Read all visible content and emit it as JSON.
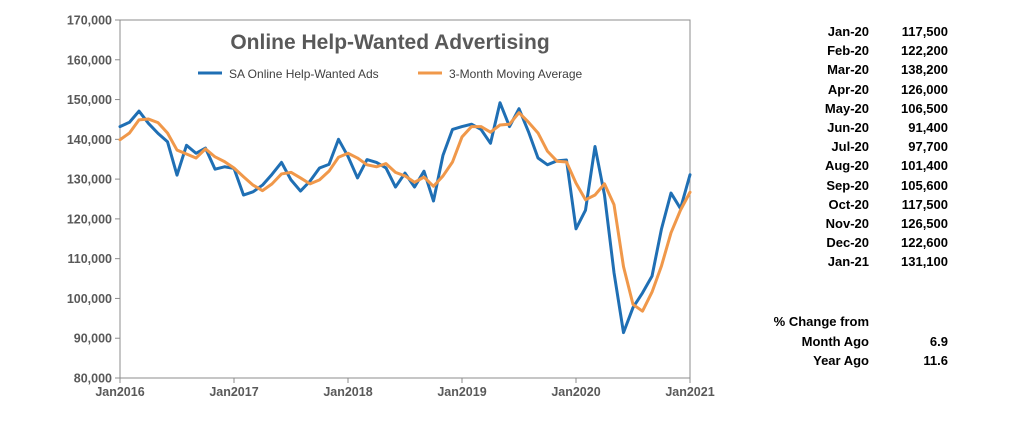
{
  "chart_data": {
    "type": "line",
    "title": "Online Help-Wanted Advertising",
    "xlabel": "",
    "ylabel": "",
    "ylim": [
      80000,
      170000
    ],
    "y_ticks": [
      80000,
      90000,
      100000,
      110000,
      120000,
      130000,
      140000,
      150000,
      160000,
      170000
    ],
    "y_tick_labels": [
      "80,000",
      "90,000",
      "100,000",
      "110,000",
      "120,000",
      "130,000",
      "140,000",
      "150,000",
      "160,000",
      "170,000"
    ],
    "x_range": [
      "Jan2016",
      "Jan2021"
    ],
    "x_tick_labels": [
      "Jan2016",
      "Jan2017",
      "Jan2018",
      "Jan2019",
      "Jan2020",
      "Jan2021"
    ],
    "legend_position": "top-center",
    "grid": false,
    "x": [
      "2016-01",
      "2016-02",
      "2016-03",
      "2016-04",
      "2016-05",
      "2016-06",
      "2016-07",
      "2016-08",
      "2016-09",
      "2016-10",
      "2016-11",
      "2016-12",
      "2017-01",
      "2017-02",
      "2017-03",
      "2017-04",
      "2017-05",
      "2017-06",
      "2017-07",
      "2017-08",
      "2017-09",
      "2017-10",
      "2017-11",
      "2017-12",
      "2018-01",
      "2018-02",
      "2018-03",
      "2018-04",
      "2018-05",
      "2018-06",
      "2018-07",
      "2018-08",
      "2018-09",
      "2018-10",
      "2018-11",
      "2018-12",
      "2019-01",
      "2019-02",
      "2019-03",
      "2019-04",
      "2019-05",
      "2019-06",
      "2019-07",
      "2019-08",
      "2019-09",
      "2019-10",
      "2019-11",
      "2019-12",
      "2020-01",
      "2020-02",
      "2020-03",
      "2020-04",
      "2020-05",
      "2020-06",
      "2020-07",
      "2020-08",
      "2020-09",
      "2020-10",
      "2020-11",
      "2020-12",
      "2021-01"
    ],
    "series": [
      {
        "name": "SA Online Help-Wanted Ads",
        "color": "#1f6fb4",
        "values": [
          143200,
          144300,
          147100,
          144000,
          141500,
          139400,
          131000,
          138500,
          136500,
          137800,
          132500,
          133100,
          132700,
          126000,
          126800,
          128500,
          131200,
          134200,
          129800,
          127000,
          129500,
          132800,
          133700,
          140000,
          135700,
          130300,
          134900,
          134200,
          132800,
          128000,
          131500,
          128000,
          132000,
          124500,
          136000,
          142500,
          143200,
          143800,
          142500,
          139000,
          149200,
          143200,
          147700,
          141900,
          135300,
          133600,
          134600,
          134800,
          117500,
          122200,
          138200,
          126000,
          106500,
          91400,
          97700,
          101400,
          105600,
          117500,
          126500,
          122600,
          131100
        ]
      },
      {
        "name": "3-Month Moving Average",
        "color": "#f0984a",
        "values": [
          139900,
          141600,
          144900,
          145100,
          144200,
          141600,
          137300,
          136300,
          135300,
          137600,
          135600,
          134400,
          132800,
          130600,
          128500,
          127100,
          128800,
          131300,
          131700,
          130300,
          128800,
          129800,
          132000,
          135500,
          136500,
          135300,
          133600,
          133100,
          133900,
          131700,
          130800,
          129200,
          130500,
          128200,
          130800,
          134300,
          140600,
          143200,
          143200,
          141800,
          143600,
          143800,
          146700,
          144300,
          141600,
          137000,
          134500,
          134300,
          129000,
          124800,
          126000,
          128800,
          123600,
          108000,
          98500,
          96800,
          101600,
          108200,
          116500,
          122200,
          126700
        ]
      }
    ]
  },
  "side_table": {
    "rows": [
      {
        "month": "Jan-20",
        "value": "117,500"
      },
      {
        "month": "Feb-20",
        "value": "122,200"
      },
      {
        "month": "Mar-20",
        "value": "138,200"
      },
      {
        "month": "Apr-20",
        "value": "126,000"
      },
      {
        "month": "May-20",
        "value": "106,500"
      },
      {
        "month": "Jun-20",
        "value": "91,400"
      },
      {
        "month": "Jul-20",
        "value": "97,700"
      },
      {
        "month": "Aug-20",
        "value": "101,400"
      },
      {
        "month": "Sep-20",
        "value": "105,600"
      },
      {
        "month": "Oct-20",
        "value": "117,500"
      },
      {
        "month": "Nov-20",
        "value": "126,500"
      },
      {
        "month": "Dec-20",
        "value": "122,600"
      },
      {
        "month": "Jan-21",
        "value": "131,100"
      }
    ]
  },
  "change": {
    "heading": "% Change from",
    "month_ago_label": "Month Ago",
    "month_ago_value": "6.9",
    "year_ago_label": "Year Ago",
    "year_ago_value": "11.6"
  }
}
